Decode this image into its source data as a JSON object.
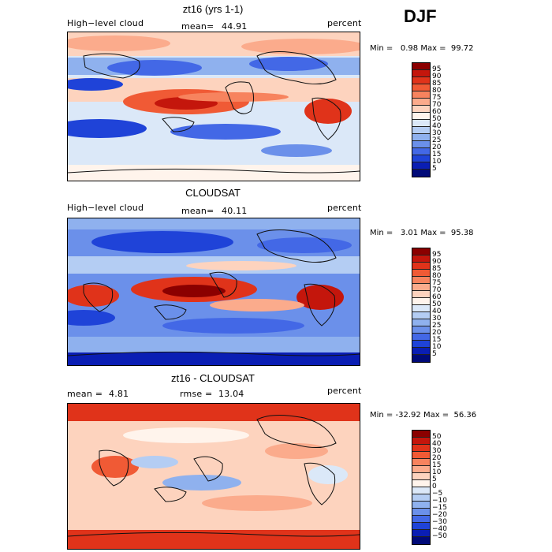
{
  "season": "DJF",
  "panels": [
    {
      "title": "zt16 (yrs 1-1)",
      "left_label": "High−level cloud",
      "mean_label": "mean=",
      "mean_value": "44.91",
      "units": "percent",
      "min_label": "Min =",
      "min_value": "0.98",
      "max_label": "Max =",
      "max_value": "99.72"
    },
    {
      "title": "CLOUDSAT",
      "left_label": "High−level cloud",
      "mean_label": "mean=",
      "mean_value": "40.11",
      "units": "percent",
      "min_label": "Min =",
      "min_value": "3.01",
      "max_label": "Max =",
      "max_value": "95.38"
    },
    {
      "title": "zt16 - CLOUDSAT",
      "mean_label": "mean =",
      "mean_value": "4.81",
      "rmse_label": "rmse =",
      "rmse_value": "13.04",
      "units": "percent",
      "min_label": "Min =",
      "min_value": "-32.92",
      "max_label": "Max =",
      "max_value": "56.36"
    }
  ],
  "colorbars": {
    "absolute": {
      "labels": [
        "95",
        "90",
        "85",
        "80",
        "75",
        "70",
        "60",
        "50",
        "40",
        "30",
        "25",
        "20",
        "15",
        "10",
        "5"
      ],
      "colors": [
        "#8b0000",
        "#c4160c",
        "#e0331a",
        "#f05a35",
        "#f7835e",
        "#fbab8c",
        "#fdd3be",
        "#fff4ec",
        "#dbe8f8",
        "#b4cdf3",
        "#8fb1ee",
        "#6b90ea",
        "#4368e6",
        "#1f43d8",
        "#0a1eb4",
        "#000a78"
      ]
    },
    "difference": {
      "labels": [
        "50",
        "40",
        "30",
        "20",
        "15",
        "10",
        "5",
        "0",
        "−5",
        "−10",
        "−15",
        "−20",
        "−30",
        "−40",
        "−50"
      ],
      "colors": [
        "#8b0000",
        "#c4160c",
        "#e0331a",
        "#f05a35",
        "#f7835e",
        "#fbab8c",
        "#fdd3be",
        "#fff4ec",
        "#dbe8f8",
        "#b4cdf3",
        "#8fb1ee",
        "#6b90ea",
        "#4368e6",
        "#1f43d8",
        "#0a1eb4",
        "#000a78"
      ]
    }
  },
  "chart_data": [
    {
      "type": "heatmap",
      "title": "zt16 (yrs 1-1)",
      "variable": "High-level cloud",
      "units": "percent",
      "mean": 44.91,
      "min": 0.98,
      "max": 99.72,
      "levels": [
        5,
        10,
        15,
        20,
        25,
        30,
        40,
        50,
        60,
        70,
        75,
        80,
        85,
        90,
        95
      ]
    },
    {
      "type": "heatmap",
      "title": "CLOUDSAT",
      "variable": "High-level cloud",
      "units": "percent",
      "mean": 40.11,
      "min": 3.01,
      "max": 95.38,
      "levels": [
        5,
        10,
        15,
        20,
        25,
        30,
        40,
        50,
        60,
        70,
        75,
        80,
        85,
        90,
        95
      ]
    },
    {
      "type": "heatmap",
      "title": "zt16 - CLOUDSAT",
      "units": "percent",
      "mean": 4.81,
      "rmse": 13.04,
      "min": -32.92,
      "max": 56.36,
      "levels": [
        -50,
        -40,
        -30,
        -20,
        -15,
        -10,
        -5,
        0,
        5,
        10,
        15,
        20,
        30,
        40,
        50
      ]
    }
  ]
}
